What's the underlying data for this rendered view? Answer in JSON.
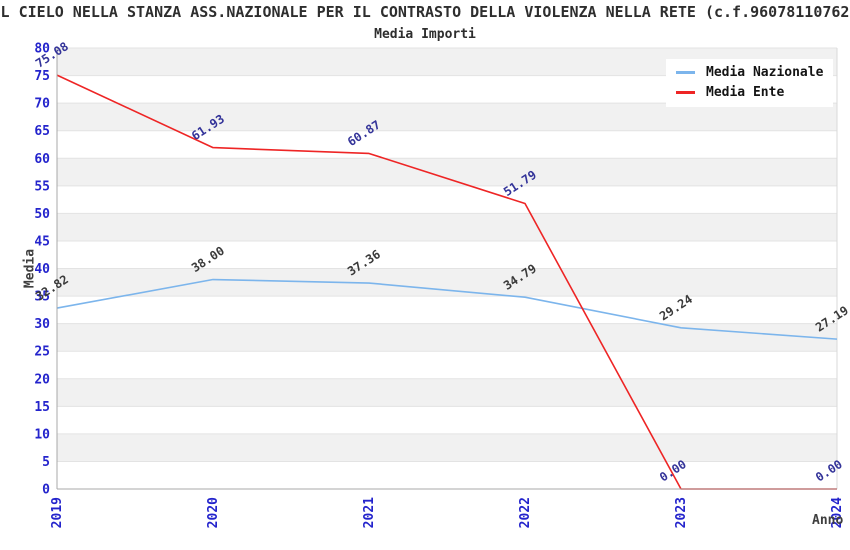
{
  "page": {
    "title": "L CIELO NELLA STANZA ASS.NAZIONALE PER IL CONTRASTO DELLA VIOLENZA NELLA RETE (c.f.96078110762",
    "subtitle": "Media Importi"
  },
  "chart_data": {
    "type": "line",
    "title": "Media Importi",
    "categories": [
      "2019",
      "2020",
      "2021",
      "2022",
      "2023",
      "2024"
    ],
    "series": [
      {
        "name": "Media Nazionale",
        "color": "#7cb5ec",
        "label_color": "#3a3a3a",
        "values": [
          32.82,
          38.0,
          37.36,
          34.79,
          29.24,
          27.19
        ],
        "labels": [
          "32.82",
          "38.00",
          "37.36",
          "34.79",
          "29.24",
          "27.19"
        ]
      },
      {
        "name": "Media Ente",
        "color": "#ee2525",
        "label_color": "#333399",
        "values": [
          75.08,
          61.93,
          60.87,
          51.79,
          0.0,
          0.0
        ],
        "labels": [
          "75.08",
          "61.93",
          "60.87",
          "51.79",
          "0.00",
          "0.00"
        ]
      }
    ],
    "xlabel": "Anno",
    "ylabel": "Media",
    "ylim": [
      0,
      80
    ],
    "yticks": [
      0,
      5,
      10,
      15,
      20,
      25,
      30,
      35,
      40,
      45,
      50,
      55,
      60,
      65,
      70,
      75,
      80
    ],
    "grid": true,
    "legend_position": "top-right"
  },
  "colors": {
    "tick_label": "#2424cc",
    "band_alt": "#f1f1f1",
    "band_main": "#ffffff",
    "gridline": "#e3e3e3",
    "axis": "#a8a8a8",
    "plot_border_right": "#d9d9d9",
    "text": "#2e2e2e",
    "background": "#ffffff"
  }
}
